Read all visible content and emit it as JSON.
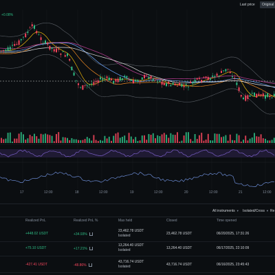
{
  "topbar": {
    "last_price_label": "Last price",
    "original_label": "Original"
  },
  "chart_labels": {
    "change_label": "+0.08%"
  },
  "time_axis": {
    "ticks": [
      "17",
      "12:00",
      "18",
      "12:00",
      "19",
      "12:00",
      "20",
      "12:00",
      "21",
      "12:00"
    ]
  },
  "filters": {
    "instruments": "All instruments",
    "margin_mode": "Isolated/Cross",
    "extra": "Re"
  },
  "table": {
    "headers": [
      "Realized PnL",
      "Realized PnL %",
      "Max held",
      "Closed",
      "Time opened"
    ],
    "rows": [
      {
        "pnl": "+448.02 USDT",
        "pnl_pct": "+34.93%",
        "max_held": "23,462.78 USDT",
        "max_held_sub": "Isolated",
        "closed": "23,462.78 USDT",
        "time": "06/20/2025, 17:31:26",
        "sign": "pos"
      },
      {
        "pnl": "+75.10 USDT",
        "pnl_pct": "+17.21%",
        "max_held": "13,264.40 USDT",
        "max_held_sub": "Isolated",
        "closed": "13,264.40 USDT",
        "time": "06/17/2025, 22:10:09",
        "sign": "pos"
      },
      {
        "pnl": "-427.41 USDT",
        "pnl_pct": "-48.86%",
        "max_held": "43,716.74 USDT",
        "max_held_sub": "Isolated",
        "closed": "43,716.74 USDT",
        "time": "06/16/2025, 23:45:43",
        "sign": "neg"
      }
    ]
  },
  "colors": {
    "up": "#2ebd85",
    "down": "#f6465d",
    "ma_yellow": "#f0b90b",
    "ma_purple": "#b03a8c",
    "ma_blue": "#6ea8fe",
    "ma_white": "#e6e6e6",
    "ma_orange": "#f08a24",
    "rsi": "#7b5fc8"
  }
}
